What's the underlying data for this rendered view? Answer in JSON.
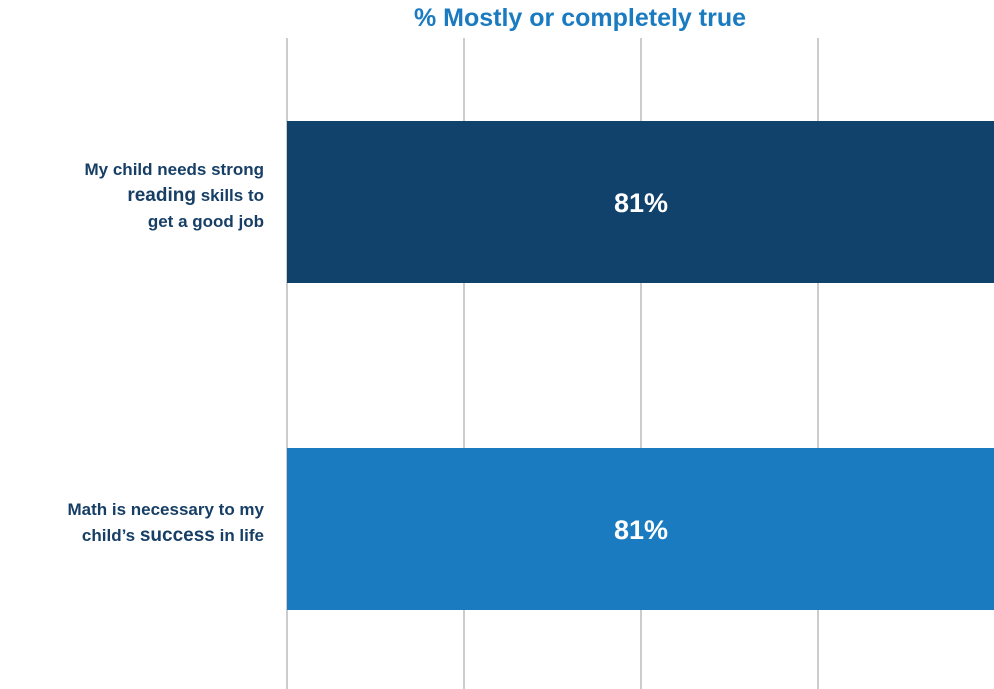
{
  "chart_data": {
    "type": "bar",
    "orientation": "horizontal",
    "title": "% Mostly or completely true",
    "xlabel": "",
    "ylabel": "",
    "xlim": [
      0,
      81
    ],
    "grid": true,
    "categories": [
      [
        "My child needs strong",
        "reading skills to",
        "get a good job"
      ],
      [
        "Math is necessary to my",
        "child’s success in life"
      ]
    ],
    "values": [
      81,
      81
    ],
    "value_labels": [
      "81%",
      "81%"
    ],
    "colors": [
      "#11426b",
      "#1a7bc0"
    ]
  },
  "colors": {
    "title": "#1a7bc0",
    "label_text": "#173f66",
    "grid": "#cccccc",
    "bar_text": "#ffffff"
  }
}
